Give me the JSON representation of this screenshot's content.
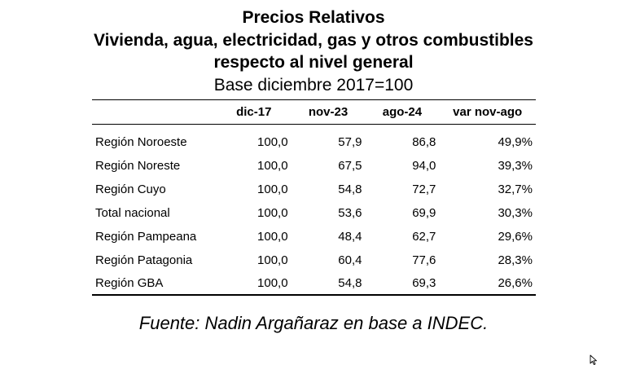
{
  "title": {
    "line1": "Precios Relativos",
    "line2": "Vivienda, agua, electricidad, gas y otros combustibles",
    "line3": "respecto al nivel general",
    "line4": "Base diciembre 2017=100"
  },
  "table": {
    "headers": [
      "",
      "dic-17",
      "nov-23",
      "ago-24",
      "var nov-ago"
    ],
    "rows": [
      {
        "region": "Región Noroeste",
        "dic17": "100,0",
        "nov23": "57,9",
        "ago24": "86,8",
        "var": "49,9%"
      },
      {
        "region": "Región Noreste",
        "dic17": "100,0",
        "nov23": "67,5",
        "ago24": "94,0",
        "var": "39,3%"
      },
      {
        "region": "Región Cuyo",
        "dic17": "100,0",
        "nov23": "54,8",
        "ago24": "72,7",
        "var": "32,7%"
      },
      {
        "region": "Total nacional",
        "dic17": "100,0",
        "nov23": "53,6",
        "ago24": "69,9",
        "var": "30,3%"
      },
      {
        "region": "Región Pampeana",
        "dic17": "100,0",
        "nov23": "48,4",
        "ago24": "62,7",
        "var": "29,6%"
      },
      {
        "region": "Región Patagonia",
        "dic17": "100,0",
        "nov23": "60,4",
        "ago24": "77,6",
        "var": "28,3%"
      },
      {
        "region": "Región GBA",
        "dic17": "100,0",
        "nov23": "54,8",
        "ago24": "69,3",
        "var": "26,6%"
      }
    ]
  },
  "source": "Fuente: Nadin Argañaraz en base a INDEC.",
  "icons": {
    "cursor": "mouse-pointer-icon"
  }
}
